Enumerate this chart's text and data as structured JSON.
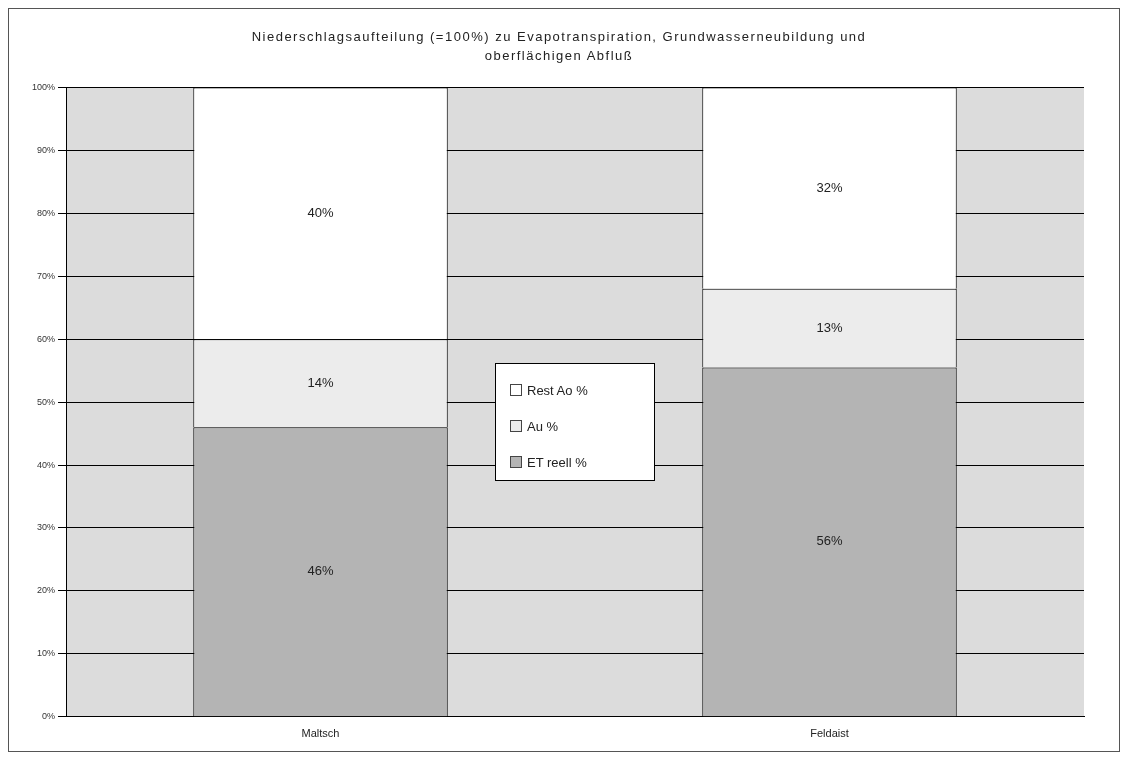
{
  "chart_data": {
    "type": "bar",
    "title": "Niederschlagsaufteilung (=100%) zu Evapotranspiration, Grundwasserneubildung und oberflächigen Abfluß",
    "categories": [
      "Maltsch",
      "Feldaist"
    ],
    "stacked": true,
    "series": [
      {
        "name": "ET reell %",
        "color": "#b4b4b4",
        "values": [
          46,
          55.5
        ],
        "value_labels": [
          "46%",
          "56%"
        ]
      },
      {
        "name": "Au %",
        "color": "#ececec",
        "values": [
          14,
          12.5
        ],
        "value_labels": [
          "14%",
          "13%"
        ]
      },
      {
        "name": "Rest Ao %",
        "color": "#ffffff",
        "values": [
          40,
          32
        ],
        "value_labels": [
          "40%",
          "32%"
        ]
      }
    ],
    "ylim": [
      0,
      100
    ],
    "yticks": [
      {
        "value": 0,
        "label": "0%"
      },
      {
        "value": 10,
        "label": "10%"
      },
      {
        "value": 20,
        "label": "20%"
      },
      {
        "value": 30,
        "label": "30%"
      },
      {
        "value": 40,
        "label": "40%"
      },
      {
        "value": 50,
        "label": "50%"
      },
      {
        "value": 60,
        "label": "60%"
      },
      {
        "value": 70,
        "label": "70%"
      },
      {
        "value": 80,
        "label": "80%"
      },
      {
        "value": 90,
        "label": "90%"
      },
      {
        "value": 100,
        "label": "100%"
      }
    ],
    "grid": "y",
    "legend": "center"
  }
}
